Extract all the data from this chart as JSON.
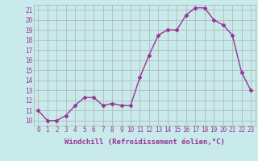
{
  "x": [
    0,
    1,
    2,
    3,
    4,
    5,
    6,
    7,
    8,
    9,
    10,
    11,
    12,
    13,
    14,
    15,
    16,
    17,
    18,
    19,
    20,
    21,
    22,
    23
  ],
  "y": [
    11,
    10,
    10,
    10.5,
    11.5,
    12.3,
    12.3,
    11.5,
    11.7,
    11.5,
    11.5,
    14.3,
    16.5,
    18.5,
    19,
    19,
    20.5,
    21.2,
    21.2,
    20,
    19.5,
    18.5,
    14.8,
    13
  ],
  "line_color": "#993399",
  "marker_color": "#993399",
  "bg_color": "#c8eaea",
  "grid_color": "#b0b0b0",
  "xlabel": "Windchill (Refroidissement éolien,°C)",
  "ylim": [
    9.5,
    21.5
  ],
  "xlim": [
    -0.5,
    23.5
  ],
  "yticks": [
    10,
    11,
    12,
    13,
    14,
    15,
    16,
    17,
    18,
    19,
    20,
    21
  ],
  "xticks": [
    0,
    1,
    2,
    3,
    4,
    5,
    6,
    7,
    8,
    9,
    10,
    11,
    12,
    13,
    14,
    15,
    16,
    17,
    18,
    19,
    20,
    21,
    22,
    23
  ],
  "xlabel_color": "#993399",
  "tick_color": "#993399",
  "tick_fontsize": 5.5,
  "xlabel_fontsize": 6.5,
  "marker_size": 2.5,
  "linewidth": 1.0
}
